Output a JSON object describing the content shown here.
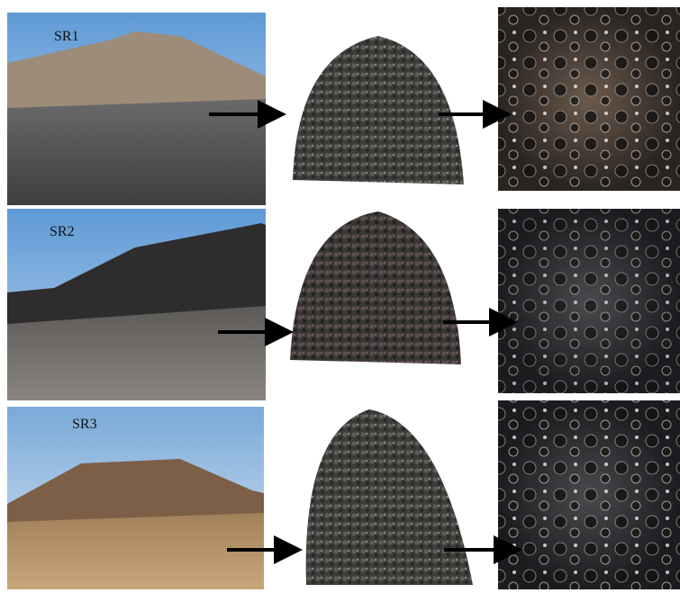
{
  "rows": [
    {
      "label": "SR1"
    },
    {
      "label": "SR2"
    },
    {
      "label": "SR3"
    }
  ]
}
